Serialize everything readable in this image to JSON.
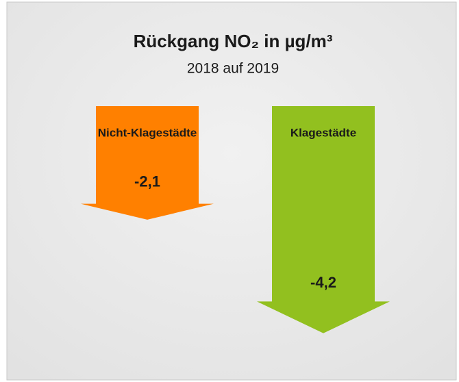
{
  "chart_data": {
    "type": "arrow-bar",
    "title": "Rückgang NO₂ in µg/m³",
    "subtitle": "2018 auf 2019",
    "categories": [
      "Nicht-Klagestädte",
      "Klagestädte"
    ],
    "values": [
      -2.1,
      -4.2
    ],
    "value_labels": [
      "-2,1",
      "-4,2"
    ],
    "colors": [
      "#ff8000",
      "#92c01f"
    ]
  }
}
